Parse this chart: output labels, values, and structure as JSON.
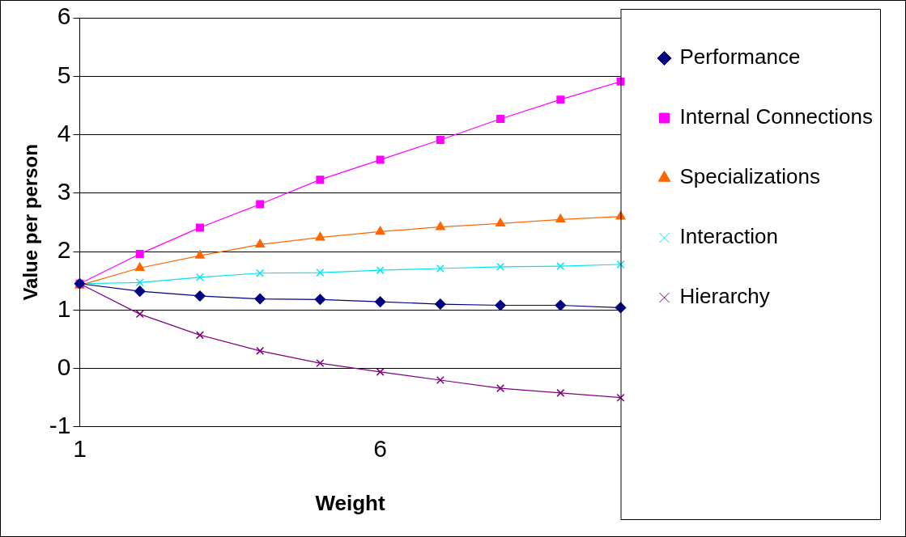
{
  "chart_data": {
    "type": "line",
    "xlabel": "Weight",
    "ylabel": "Value per person",
    "categories": [
      "1",
      null,
      null,
      null,
      null,
      "6",
      null,
      null,
      null,
      null
    ],
    "ylim": [
      -1,
      6
    ],
    "yticks": [
      -1,
      0,
      1,
      2,
      3,
      4,
      5,
      6
    ],
    "grid": "y",
    "legend": "right",
    "line_style": "solid",
    "series": [
      {
        "name": "Performance",
        "color": "#000080",
        "marker": "diamond",
        "values": [
          1.45,
          1.32,
          1.24,
          1.19,
          1.18,
          1.14,
          1.1,
          1.08,
          1.08,
          1.04
        ]
      },
      {
        "name": "Internal Connections",
        "color": "#ff00ff",
        "marker": "square",
        "values": [
          1.45,
          1.96,
          2.41,
          2.81,
          3.23,
          3.57,
          3.91,
          4.27,
          4.6,
          4.91
        ]
      },
      {
        "name": "Specializations",
        "color": "#ff6600",
        "marker": "triangle",
        "values": [
          1.42,
          1.72,
          1.93,
          2.12,
          2.24,
          2.34,
          2.42,
          2.48,
          2.55,
          2.6
        ]
      },
      {
        "name": "Interaction",
        "color": "#00e5ee",
        "marker": "cross",
        "values": [
          1.45,
          1.47,
          1.56,
          1.63,
          1.64,
          1.68,
          1.71,
          1.74,
          1.75,
          1.78
        ]
      },
      {
        "name": "Hierarchy",
        "color": "#800080",
        "marker": "cross",
        "values": [
          1.45,
          0.93,
          0.57,
          0.3,
          0.09,
          -0.06,
          -0.2,
          -0.34,
          -0.42,
          -0.5
        ]
      }
    ]
  }
}
